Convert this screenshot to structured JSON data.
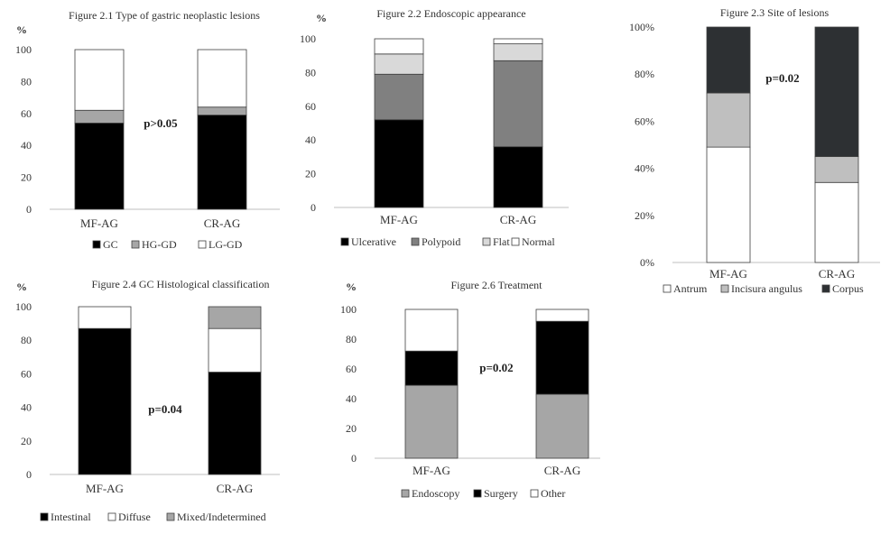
{
  "colors": {
    "black": "#000000",
    "gray": "#a6a6a6",
    "light_gray": "#d9d9d9",
    "white": "#ffffff",
    "dark": "#2d3033",
    "axis": "#bfbfbf"
  },
  "chart_data": [
    {
      "id": "f21",
      "type": "bar",
      "stacked": true,
      "title": "Figure  2.1 Type of gastric neoplastic  lesions",
      "ylabel": "%",
      "categories": [
        "MF-AG",
        "CR-AG"
      ],
      "ylim": [
        0,
        100
      ],
      "yticks": [
        "0",
        "20",
        "40",
        "60",
        "80",
        "100"
      ],
      "annotation": "p>0.05",
      "legend_position": "bottom",
      "series": [
        {
          "name": "GC",
          "color": "#000000",
          "values": [
            54,
            59
          ]
        },
        {
          "name": "HG-GD",
          "color": "#a6a6a6",
          "values": [
            8,
            5
          ]
        },
        {
          "name": "LG-GD",
          "color": "#ffffff",
          "values": [
            38,
            36
          ]
        }
      ]
    },
    {
      "id": "f22",
      "type": "bar",
      "stacked": true,
      "title": "Figure  2.2 Endoscopic  appearance",
      "ylabel": "%",
      "categories": [
        "MF-AG",
        "CR-AG"
      ],
      "ylim": [
        0,
        100
      ],
      "yticks": [
        "0",
        "20",
        "40",
        "60",
        "80",
        "100"
      ],
      "annotation": "",
      "legend_position": "bottom",
      "series": [
        {
          "name": "Ulcerative",
          "color": "#000000",
          "values": [
            52,
            36
          ]
        },
        {
          "name": "Polypoid",
          "color": "#808080",
          "values": [
            27,
            51
          ]
        },
        {
          "name": "Flat",
          "color": "#d9d9d9",
          "values": [
            12,
            10
          ]
        },
        {
          "name": "Normal",
          "color": "#ffffff",
          "values": [
            9,
            3
          ]
        }
      ]
    },
    {
      "id": "f23",
      "type": "bar",
      "stacked": true,
      "title": "Figure  2.3 Site  of lesions",
      "ylabel": "",
      "categories": [
        "MF-AG",
        "CR-AG"
      ],
      "ylim": [
        0,
        100
      ],
      "yticks": [
        "0%",
        "20%",
        "40%",
        "60%",
        "80%",
        "100%"
      ],
      "annotation": "p=0.02",
      "legend_position": "bottom",
      "series": [
        {
          "name": "Antrum",
          "color": "#ffffff",
          "values": [
            49,
            34
          ]
        },
        {
          "name": "Incisura angulus",
          "color": "#bfbfbf",
          "values": [
            23,
            11
          ]
        },
        {
          "name": "Corpus",
          "color": "#2d3033",
          "values": [
            28,
            55
          ]
        }
      ]
    },
    {
      "id": "f24",
      "type": "bar",
      "stacked": true,
      "title": "Figure  2.4  GC  Histological  classification",
      "ylabel": "%",
      "categories": [
        "MF-AG",
        "CR-AG"
      ],
      "ylim": [
        0,
        100
      ],
      "yticks": [
        "0",
        "20",
        "40",
        "60",
        "80",
        "100"
      ],
      "annotation": "p=0.04",
      "legend_position": "bottom",
      "series": [
        {
          "name": "Intestinal",
          "color": "#000000",
          "values": [
            87,
            61
          ]
        },
        {
          "name": "Diffuse",
          "color": "#ffffff",
          "values": [
            13,
            26
          ]
        },
        {
          "name": "Mixed/Indetermined",
          "color": "#a6a6a6",
          "values": [
            0,
            13
          ]
        }
      ]
    },
    {
      "id": "f26",
      "type": "bar",
      "stacked": true,
      "title": "Figure  2.6 Treatment",
      "ylabel": "%",
      "categories": [
        "MF-AG",
        "CR-AG"
      ],
      "ylim": [
        0,
        100
      ],
      "yticks": [
        "0",
        "20",
        "40",
        "60",
        "80",
        "100"
      ],
      "annotation": "p=0.02",
      "legend_position": "bottom",
      "series": [
        {
          "name": "Endoscopy",
          "color": "#a6a6a6",
          "values": [
            49,
            43
          ]
        },
        {
          "name": "Surgery",
          "color": "#000000",
          "values": [
            23,
            49
          ]
        },
        {
          "name": "Other",
          "color": "#ffffff",
          "values": [
            28,
            8
          ]
        }
      ]
    }
  ]
}
